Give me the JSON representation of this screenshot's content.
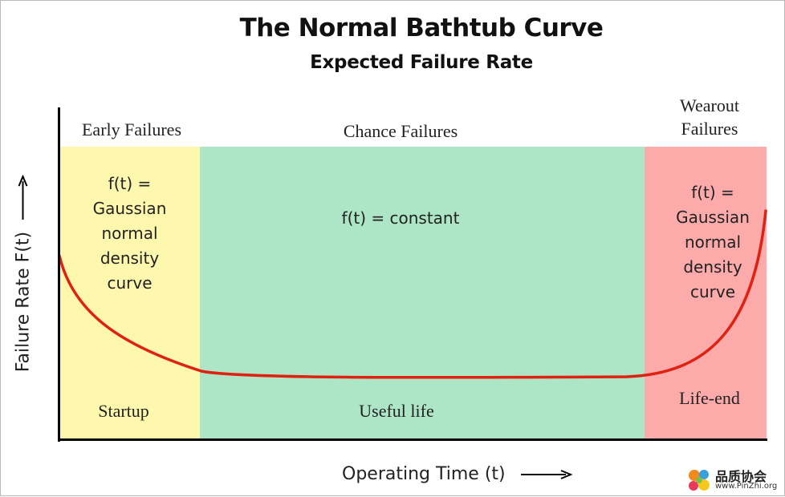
{
  "title": "The Normal Bathtub Curve",
  "subtitle": "Expected Failure Rate",
  "y_axis_label": "Failure Rate F(t)",
  "x_axis_label": "Operating Time (t)",
  "zones": {
    "early": {
      "heading": "Early Failures",
      "formula_lines": [
        "f(t) =",
        "Gaussian",
        "normal",
        "density",
        "curve"
      ],
      "phase": "Startup",
      "color": "#fdf8ad"
    },
    "chance": {
      "heading": "Chance Failures",
      "formula": "f(t) =  constant",
      "phase": "Useful life",
      "color": "#ade6c6"
    },
    "wearout": {
      "heading_lines": [
        "Wearout",
        "Failures"
      ],
      "formula_lines": [
        "f(t) =",
        "Gaussian",
        "normal",
        "density",
        "curve"
      ],
      "phase": "Life-end",
      "color": "#fdaaaa"
    }
  },
  "curve_color": "#e02010",
  "watermark": {
    "name": "品质协会",
    "url": "www.PinZhi.org"
  }
}
